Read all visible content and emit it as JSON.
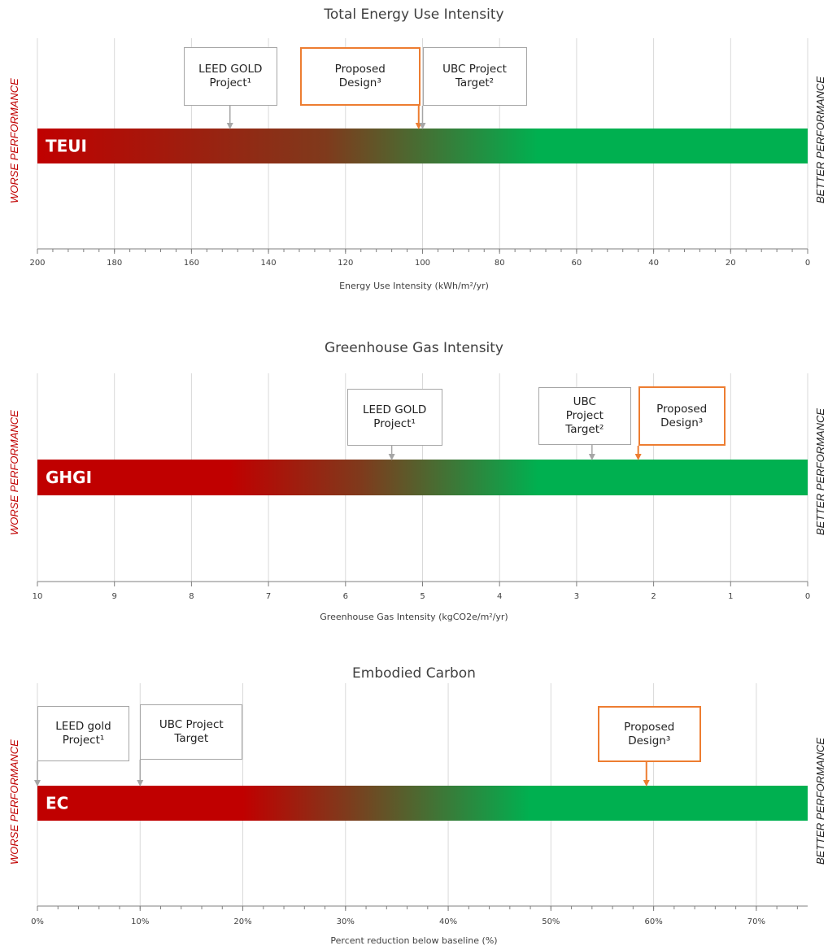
{
  "colors": {
    "worse": "#c00000",
    "better": "#00b050",
    "mid": "#7f3a1c",
    "grid": "#d9d9d9",
    "axis": "#7f7f7f",
    "callout_orange": "#ed7d31",
    "callout_gray": "#a6a6a6"
  },
  "side_labels": {
    "left": "WORSE PERFORMANCE",
    "right": "BETTER PERFORMANCE"
  },
  "chart_data": [
    {
      "type": "bar",
      "title": "Total Energy Use Intensity",
      "bar_label": "TEUI",
      "xlabel": "Energy Use Intensity (kWh/m²/yr)",
      "xlim": [
        200,
        0
      ],
      "ticks": [
        200,
        180,
        160,
        140,
        120,
        100,
        80,
        60,
        40,
        20,
        0
      ],
      "tick_labels": [
        "200",
        "180",
        "160",
        "140",
        "120",
        "100",
        "80",
        "60",
        "40",
        "20",
        "0"
      ],
      "minor_step": 4,
      "gradient": [
        {
          "value": 200,
          "color": "worse"
        },
        {
          "value": 125,
          "color": "mid"
        },
        {
          "value": 70,
          "color": "better"
        }
      ],
      "markers": [
        {
          "label": "LEED GOLD\nProject¹",
          "value": 150,
          "style": "gray"
        },
        {
          "label": "Proposed\nDesign³",
          "value": 101,
          "style": "orange"
        },
        {
          "label": "UBC Project\nTarget²",
          "value": 100,
          "style": "gray"
        }
      ]
    },
    {
      "type": "bar",
      "title": "Greenhouse Gas Intensity",
      "bar_label": "GHGI",
      "xlabel": "Greenhouse Gas Intensity (kgCO2e/m²/yr)",
      "xlim": [
        10,
        0
      ],
      "ticks": [
        10,
        9,
        8,
        7,
        6,
        5,
        4,
        3,
        2,
        1,
        0
      ],
      "tick_labels": [
        "10",
        "9",
        "8",
        "7",
        "6",
        "5",
        "4",
        "3",
        "2",
        "1",
        "0"
      ],
      "minor_step": 0,
      "gradient": [
        {
          "value": 7.5,
          "color": "worse"
        },
        {
          "value": 5.8,
          "color": "mid"
        },
        {
          "value": 3.5,
          "color": "better"
        }
      ],
      "markers": [
        {
          "label": "LEED GOLD\nProject¹",
          "value": 5.4,
          "style": "gray"
        },
        {
          "label": "UBC\nProject\nTarget²",
          "value": 2.8,
          "style": "gray"
        },
        {
          "label": "Proposed\nDesign³",
          "value": 2.2,
          "style": "orange"
        }
      ]
    },
    {
      "type": "bar",
      "title": "Embodied Carbon",
      "bar_label": "EC",
      "xlabel": "Percent reduction below baseline (%)",
      "xlim": [
        0,
        75
      ],
      "ticks": [
        0,
        10,
        20,
        30,
        40,
        50,
        60,
        70
      ],
      "tick_labels": [
        "0%",
        "10%",
        "20%",
        "30%",
        "40%",
        "50%",
        "60%",
        "70%"
      ],
      "minor_step": 2,
      "gradient": [
        {
          "value": 20,
          "color": "worse"
        },
        {
          "value": 30,
          "color": "mid"
        },
        {
          "value": 48,
          "color": "better"
        }
      ],
      "markers": [
        {
          "label": "LEED gold\nProject¹",
          "value": 0,
          "style": "gray"
        },
        {
          "label": "UBC Project\nTarget",
          "value": 10,
          "style": "gray"
        },
        {
          "label": "Proposed\nDesign³",
          "value": 59.3,
          "style": "orange"
        }
      ]
    }
  ]
}
